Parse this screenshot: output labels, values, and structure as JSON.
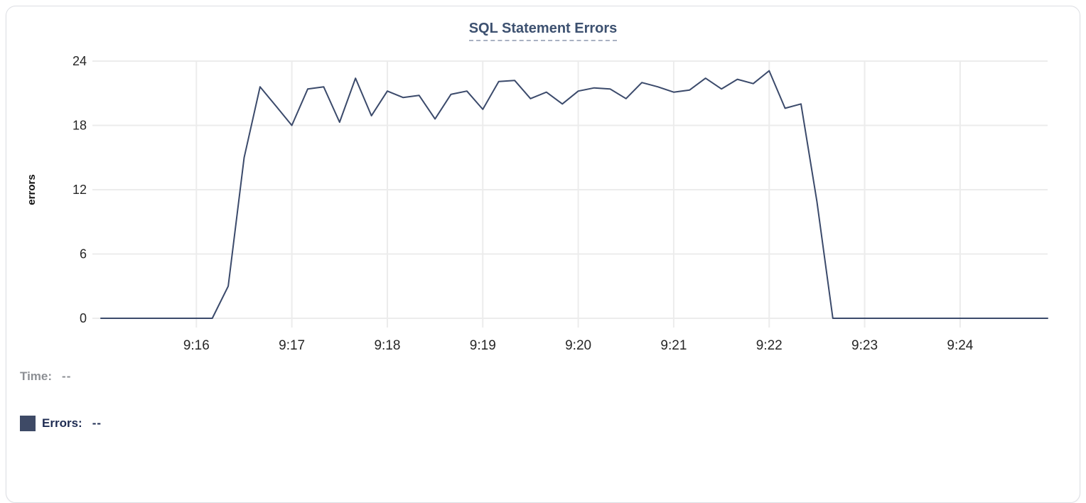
{
  "card": {
    "title": "SQL Statement Errors"
  },
  "readout": {
    "time_label": "Time:",
    "time_value": "--",
    "errors_label": "Errors:",
    "errors_value": "--"
  },
  "colors": {
    "title": "#3d5170",
    "title_underline": "#a9b1c2",
    "line": "#3b4a6b",
    "swatch": "#3e4a66",
    "time_label": "#8c8f94",
    "errors_label": "#1e2c52",
    "grid": "#ececec",
    "tick_text": "#262626",
    "axis_label": "#111111",
    "card_border": "#dcdee3"
  },
  "chart_data": {
    "type": "line",
    "title": "SQL Statement Errors",
    "xlabel": "",
    "ylabel": "errors",
    "grid": true,
    "legend_position": "bottom-left",
    "ylim": [
      0,
      24
    ],
    "yticks": [
      0,
      6,
      12,
      18,
      24
    ],
    "xticks": [
      "9:16",
      "9:17",
      "9:18",
      "9:19",
      "9:20",
      "9:21",
      "9:22",
      "9:23",
      "9:24"
    ],
    "x_domain": [
      "9:15:00",
      "9:24:55"
    ],
    "series": [
      {
        "name": "Errors",
        "color": "#3b4a6b",
        "x": [
          "9:15:00",
          "9:15:10",
          "9:15:20",
          "9:15:30",
          "9:15:40",
          "9:15:50",
          "9:16:00",
          "9:16:10",
          "9:16:20",
          "9:16:30",
          "9:16:40",
          "9:16:50",
          "9:17:00",
          "9:17:10",
          "9:17:20",
          "9:17:30",
          "9:17:40",
          "9:17:50",
          "9:18:00",
          "9:18:10",
          "9:18:20",
          "9:18:30",
          "9:18:40",
          "9:18:50",
          "9:19:00",
          "9:19:10",
          "9:19:20",
          "9:19:30",
          "9:19:40",
          "9:19:50",
          "9:20:00",
          "9:20:10",
          "9:20:20",
          "9:20:30",
          "9:20:40",
          "9:20:50",
          "9:21:00",
          "9:21:10",
          "9:21:20",
          "9:21:30",
          "9:21:40",
          "9:21:50",
          "9:22:00",
          "9:22:10",
          "9:22:20",
          "9:22:30",
          "9:22:40",
          "9:22:50",
          "9:23:00",
          "9:23:10",
          "9:23:20",
          "9:23:30",
          "9:23:40",
          "9:23:50",
          "9:24:00",
          "9:24:10",
          "9:24:20",
          "9:24:30",
          "9:24:40",
          "9:24:50",
          "9:24:55"
        ],
        "values": [
          0,
          0,
          0,
          0,
          0,
          0,
          0,
          0,
          3,
          15,
          21.6,
          19.8,
          18,
          21.4,
          21.6,
          18.3,
          22.4,
          18.9,
          21.2,
          20.6,
          20.8,
          18.6,
          20.9,
          21.2,
          19.5,
          22.1,
          22.2,
          20.5,
          21.1,
          20,
          21.2,
          21.5,
          21.4,
          20.5,
          22,
          21.6,
          21.1,
          21.3,
          22.4,
          21.4,
          22.3,
          21.9,
          23.1,
          19.6,
          20,
          10.9,
          0,
          0,
          0,
          0,
          0,
          0,
          0,
          0,
          0,
          0,
          0,
          0,
          0,
          0,
          0
        ]
      }
    ]
  }
}
